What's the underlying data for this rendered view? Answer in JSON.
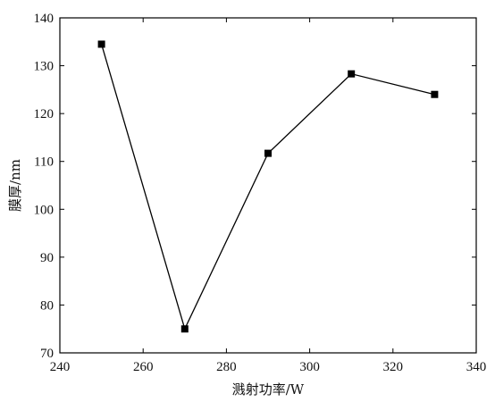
{
  "chart_data": {
    "type": "line",
    "title": "",
    "xlabel": "溅射功率/W",
    "ylabel": "膜厚/nm",
    "xlim": [
      240,
      340
    ],
    "ylim": [
      70,
      140
    ],
    "xticks": [
      240,
      260,
      280,
      300,
      320,
      340
    ],
    "yticks": [
      70,
      80,
      90,
      100,
      110,
      120,
      130,
      140
    ],
    "grid": false,
    "legend": "none",
    "marker": "square",
    "colors": {
      "line": "#000000",
      "marker": "#000000",
      "axis": "#000000"
    },
    "series": [
      {
        "x": [
          250,
          270,
          290,
          310,
          330
        ],
        "values": [
          134.5,
          75,
          111.7,
          128.3,
          124
        ]
      }
    ]
  }
}
